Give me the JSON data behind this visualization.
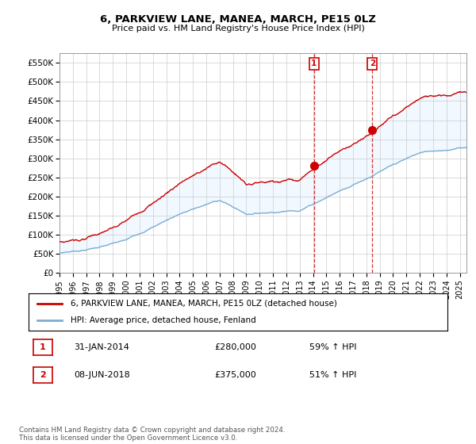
{
  "title": "6, PARKVIEW LANE, MANEA, MARCH, PE15 0LZ",
  "subtitle": "Price paid vs. HM Land Registry's House Price Index (HPI)",
  "legend_label_red": "6, PARKVIEW LANE, MANEA, MARCH, PE15 0LZ (detached house)",
  "legend_label_blue": "HPI: Average price, detached house, Fenland",
  "annotation1_label": "1",
  "annotation1_date": "31-JAN-2014",
  "annotation1_price": "£280,000",
  "annotation1_hpi": "59% ↑ HPI",
  "annotation2_label": "2",
  "annotation2_date": "08-JUN-2018",
  "annotation2_price": "£375,000",
  "annotation2_hpi": "51% ↑ HPI",
  "footer": "Contains HM Land Registry data © Crown copyright and database right 2024.\nThis data is licensed under the Open Government Licence v3.0.",
  "ylim": [
    0,
    575000
  ],
  "yticks": [
    0,
    50000,
    100000,
    150000,
    200000,
    250000,
    300000,
    350000,
    400000,
    450000,
    500000,
    550000
  ],
  "ytick_labels": [
    "£0",
    "£50K",
    "£100K",
    "£150K",
    "£200K",
    "£250K",
    "£300K",
    "£350K",
    "£400K",
    "£450K",
    "£500K",
    "£550K"
  ],
  "red_color": "#cc0000",
  "blue_color": "#7aadd4",
  "shade_color": "#ddeeff",
  "marker1_x": 2014.08,
  "marker1_y": 280000,
  "marker2_x": 2018.44,
  "marker2_y": 375000,
  "vline1_x": 2014.08,
  "vline2_x": 2018.44,
  "bg_color": "#ffffff",
  "grid_color": "#cccccc",
  "xlim_start": 1995,
  "xlim_end": 2025.5
}
